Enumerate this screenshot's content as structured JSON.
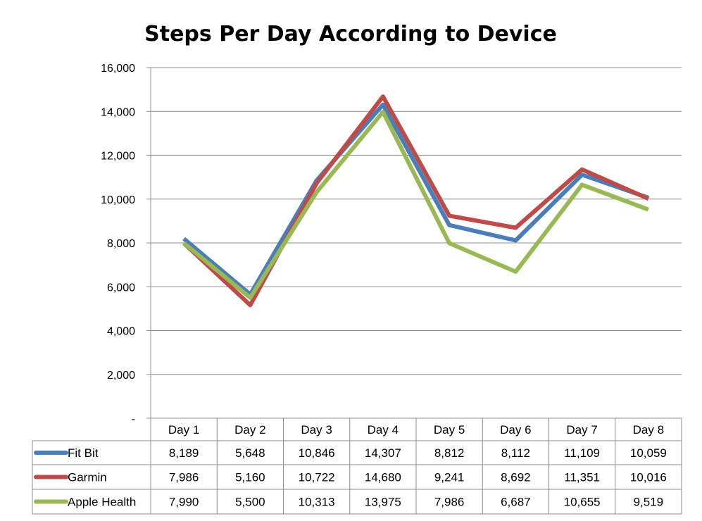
{
  "chart_data": {
    "type": "line",
    "title": "Steps Per Day According to Device",
    "xlabel": "",
    "ylabel": "",
    "ylim": [
      0,
      16000
    ],
    "yticks": [
      {
        "value": 0,
        "label": "-"
      },
      {
        "value": 2000,
        "label": "2,000"
      },
      {
        "value": 4000,
        "label": "4,000"
      },
      {
        "value": 6000,
        "label": "6,000"
      },
      {
        "value": 8000,
        "label": "8,000"
      },
      {
        "value": 10000,
        "label": "10,000"
      },
      {
        "value": 12000,
        "label": "12,000"
      },
      {
        "value": 14000,
        "label": "14,000"
      },
      {
        "value": 16000,
        "label": "16,000"
      }
    ],
    "grid": true,
    "legend": "data-table",
    "categories": [
      "Day 1",
      "Day 2",
      "Day 3",
      "Day 4",
      "Day 5",
      "Day 6",
      "Day 7",
      "Day 8"
    ],
    "series": [
      {
        "name": "Fit Bit",
        "color": "#4A7EBB",
        "values": [
          8189,
          5648,
          10846,
          14307,
          8812,
          8112,
          11109,
          10059
        ],
        "labels": [
          "8,189",
          "5,648",
          "10,846",
          "14,307",
          "8,812",
          "8,112",
          "11,109",
          "10,059"
        ]
      },
      {
        "name": "Garmin",
        "color": "#BE4B48",
        "values": [
          7986,
          5160,
          10722,
          14680,
          9241,
          8692,
          11351,
          10016
        ],
        "labels": [
          "7,986",
          "5,160",
          "10,722",
          "14,680",
          "9,241",
          "8,692",
          "11,351",
          "10,016"
        ]
      },
      {
        "name": "Apple Health",
        "color": "#98B954",
        "values": [
          7990,
          5500,
          10313,
          13975,
          7986,
          6687,
          10655,
          9519
        ],
        "labels": [
          "7,990",
          "5,500",
          "10,313",
          "13,975",
          "7,986",
          "6,687",
          "10,655",
          "9,519"
        ]
      }
    ]
  }
}
